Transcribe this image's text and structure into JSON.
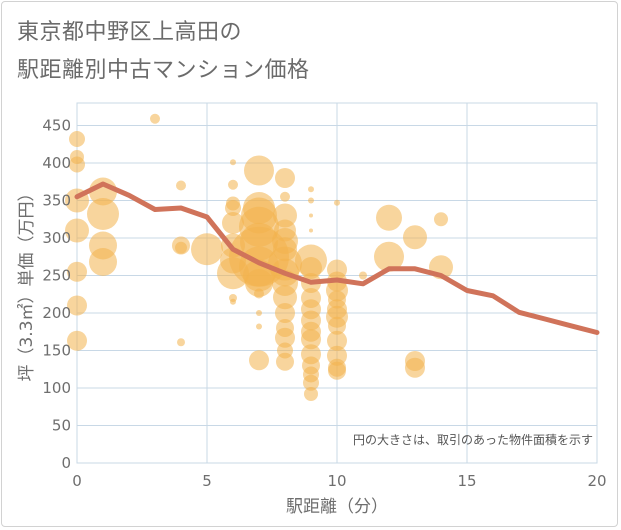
{
  "title_line1": "東京都中野区上高田の",
  "title_line2": "駅距離別中古マンション価格",
  "chart_data": {
    "type": "scatter",
    "xlabel": "駅距離（分）",
    "ylabel": "坪（3.3㎡）単価（万円）",
    "xlim": [
      0,
      20
    ],
    "ylim": [
      0,
      480
    ],
    "x_ticks": [
      0,
      5,
      10,
      15,
      20
    ],
    "y_ticks": [
      0,
      50,
      100,
      150,
      200,
      250,
      300,
      350,
      400,
      450
    ],
    "x_tick_labels": [
      "0",
      "5",
      "10",
      "15",
      "20"
    ],
    "y_tick_labels": [
      "0",
      "50",
      "100",
      "150",
      "200",
      "250",
      "300",
      "350",
      "400",
      "450"
    ],
    "grid": true,
    "note": "円の大きさは、取引のあった物件面積を示す",
    "colors": {
      "bubble": "#f2b24c",
      "line": "#d0735a",
      "grid": "#c8d8e6"
    },
    "series": [
      {
        "type": "bubble",
        "points": [
          [
            0,
            432,
            8
          ],
          [
            0,
            408,
            7
          ],
          [
            0,
            398,
            8
          ],
          [
            0,
            350,
            12
          ],
          [
            0,
            310,
            12
          ],
          [
            0,
            255,
            10
          ],
          [
            0,
            210,
            10
          ],
          [
            0,
            163,
            10
          ],
          [
            1,
            362,
            14
          ],
          [
            1,
            332,
            16
          ],
          [
            1,
            290,
            14
          ],
          [
            1,
            268,
            14
          ],
          [
            3,
            459,
            5
          ],
          [
            4,
            370,
            5
          ],
          [
            4,
            290,
            9
          ],
          [
            4,
            287,
            6
          ],
          [
            4,
            161,
            4
          ],
          [
            5,
            285,
            16
          ],
          [
            6,
            401,
            3
          ],
          [
            6,
            371,
            5
          ],
          [
            6,
            346,
            7
          ],
          [
            6,
            340,
            8
          ],
          [
            6,
            320,
            11
          ],
          [
            6,
            290,
            12
          ],
          [
            6,
            270,
            13
          ],
          [
            6,
            253,
            16
          ],
          [
            6,
            220,
            4
          ],
          [
            6,
            215,
            3
          ],
          [
            7,
            390,
            15
          ],
          [
            7,
            340,
            16
          ],
          [
            7,
            330,
            18
          ],
          [
            7,
            315,
            20
          ],
          [
            7,
            295,
            19
          ],
          [
            7,
            275,
            30
          ],
          [
            7,
            262,
            20
          ],
          [
            7,
            250,
            16
          ],
          [
            7,
            240,
            14
          ],
          [
            7,
            226,
            5
          ],
          [
            7,
            200,
            3
          ],
          [
            7,
            182,
            3
          ],
          [
            7,
            137,
            10
          ],
          [
            8,
            380,
            10
          ],
          [
            8,
            355,
            5
          ],
          [
            8,
            330,
            12
          ],
          [
            8,
            310,
            11
          ],
          [
            8,
            296,
            13
          ],
          [
            8,
            285,
            12
          ],
          [
            8,
            266,
            17
          ],
          [
            8,
            254,
            14
          ],
          [
            8,
            240,
            13
          ],
          [
            8,
            221,
            12
          ],
          [
            8,
            200,
            10
          ],
          [
            8,
            180,
            9
          ],
          [
            8,
            167,
            10
          ],
          [
            8,
            150,
            8
          ],
          [
            8,
            135,
            9
          ],
          [
            9,
            365,
            3
          ],
          [
            9,
            350,
            3
          ],
          [
            9,
            330,
            2
          ],
          [
            9,
            310,
            2
          ],
          [
            9,
            270,
            16
          ],
          [
            9,
            260,
            11
          ],
          [
            9,
            240,
            10
          ],
          [
            9,
            220,
            10
          ],
          [
            9,
            205,
            10
          ],
          [
            9,
            190,
            10
          ],
          [
            9,
            175,
            10
          ],
          [
            9,
            165,
            10
          ],
          [
            9,
            145,
            10
          ],
          [
            9,
            130,
            9
          ],
          [
            9,
            118,
            8
          ],
          [
            9,
            107,
            8
          ],
          [
            9,
            92,
            7
          ],
          [
            10,
            347,
            3
          ],
          [
            10,
            258,
            10
          ],
          [
            10,
            242,
            10
          ],
          [
            10,
            230,
            11
          ],
          [
            10,
            218,
            9
          ],
          [
            10,
            205,
            10
          ],
          [
            10,
            195,
            11
          ],
          [
            10,
            183,
            9
          ],
          [
            10,
            163,
            10
          ],
          [
            10,
            143,
            10
          ],
          [
            10,
            127,
            9
          ],
          [
            10,
            123,
            9
          ],
          [
            11,
            250,
            4
          ],
          [
            12,
            327,
            13
          ],
          [
            12,
            275,
            15
          ],
          [
            13,
            301,
            12
          ],
          [
            13,
            136,
            10
          ],
          [
            13,
            127,
            10
          ],
          [
            14,
            325,
            7
          ],
          [
            14,
            261,
            12
          ]
        ]
      },
      {
        "type": "line",
        "x": [
          0,
          1,
          2,
          3,
          4,
          5,
          6,
          7,
          8,
          9,
          10,
          11,
          12,
          13,
          14,
          15,
          16,
          17,
          18,
          19,
          20
        ],
        "y": [
          355,
          372,
          357,
          338,
          340,
          328,
          285,
          267,
          253,
          241,
          244,
          239,
          259,
          259,
          250,
          230,
          223,
          201,
          192,
          183,
          174
        ]
      }
    ]
  }
}
